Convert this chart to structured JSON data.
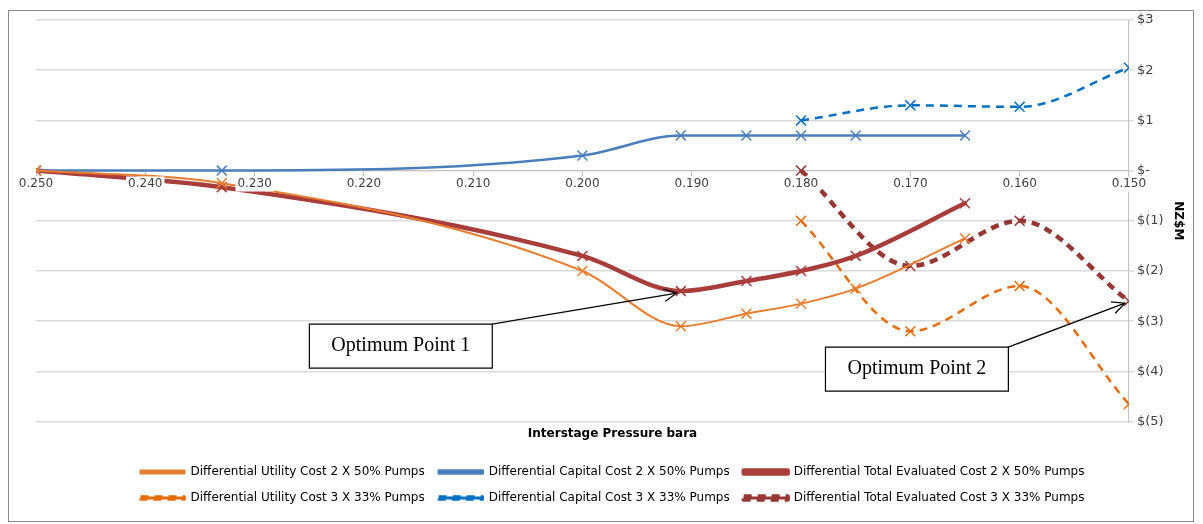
{
  "chart_data": {
    "type": "line",
    "xlabel": "Interstage Pressure bara",
    "ylabel": "NZ$M",
    "xlim": [
      0.25,
      0.15
    ],
    "xticks": [
      {
        "value": 0.25,
        "label": "0.250"
      },
      {
        "value": 0.24,
        "label": "0.240"
      },
      {
        "value": 0.23,
        "label": "0.230"
      },
      {
        "value": 0.22,
        "label": "0.220"
      },
      {
        "value": 0.21,
        "label": "0.210"
      },
      {
        "value": 0.2,
        "label": "0.200"
      },
      {
        "value": 0.19,
        "label": "0.190"
      },
      {
        "value": 0.18,
        "label": "0.180"
      },
      {
        "value": 0.17,
        "label": "0.170"
      },
      {
        "value": 0.16,
        "label": "0.160"
      },
      {
        "value": 0.15,
        "label": "0.150"
      }
    ],
    "ylim": [
      -5,
      3
    ],
    "yticks": [
      {
        "value": 3,
        "label": "$3"
      },
      {
        "value": 2,
        "label": "$2"
      },
      {
        "value": 1,
        "label": "$1"
      },
      {
        "value": 0,
        "label": "$-"
      },
      {
        "value": -1,
        "label": "$(1)"
      },
      {
        "value": -2,
        "label": "$(2)"
      },
      {
        "value": -3,
        "label": "$(3)"
      },
      {
        "value": -4,
        "label": "$(4)"
      },
      {
        "value": -5,
        "label": "$(5)"
      }
    ],
    "grid": "y",
    "legend": "bottom",
    "marker": "cross",
    "series": [
      {
        "name": "Differential Utility Cost 2 X 50% Pumps",
        "color": "#e87d2f",
        "line_style": "solid",
        "x": [
          0.25,
          0.233,
          0.2,
          0.191,
          0.185,
          0.18,
          0.175,
          0.165
        ],
        "values": [
          0,
          -0.25,
          -2.0,
          -3.1,
          -2.85,
          -2.65,
          -2.35,
          -1.35
        ]
      },
      {
        "name": "Differential Capital Cost 2 X 50% Pumps",
        "color": "#4a7ebb",
        "line_style": "solid",
        "x": [
          0.25,
          0.233,
          0.2,
          0.191,
          0.185,
          0.18,
          0.175,
          0.165
        ],
        "values": [
          0,
          0,
          0.3,
          0.7,
          0.7,
          0.7,
          0.7,
          0.7
        ]
      },
      {
        "name": "Differential Total Evaluated Cost 2 X 50% Pumps",
        "color": "#a83e3c",
        "line_style": "solid",
        "x": [
          0.25,
          0.233,
          0.2,
          0.191,
          0.185,
          0.18,
          0.175,
          0.165
        ],
        "values": [
          0,
          -0.33,
          -1.7,
          -2.4,
          -2.2,
          -2.0,
          -1.7,
          -0.65
        ]
      },
      {
        "name": "Differential Utility Cost 3 X 33% Pumps",
        "color": "#e46c0a",
        "line_style": "dashed",
        "x": [
          0.18,
          0.17,
          0.16,
          0.15
        ],
        "values": [
          -1.0,
          -3.2,
          -2.3,
          -4.65
        ]
      },
      {
        "name": "Differential Capital Cost 3 X 33% Pumps",
        "color": "#0070c0",
        "line_style": "dashed",
        "x": [
          0.18,
          0.17,
          0.16,
          0.15
        ],
        "values": [
          1.0,
          1.3,
          1.27,
          2.05
        ]
      },
      {
        "name": "Differential Total Evaluated Cost 3 X 33% Pumps",
        "color": "#953735",
        "line_style": "dashed",
        "x": [
          0.18,
          0.17,
          0.16,
          0.15
        ],
        "values": [
          0,
          -1.9,
          -1.0,
          -2.6
        ]
      }
    ],
    "annotations": [
      {
        "text": "Optimum Point 1",
        "x": 0.191,
        "y": -2.4
      },
      {
        "text": "Optimum Point 2",
        "x": 0.15,
        "y": -2.6
      }
    ]
  }
}
